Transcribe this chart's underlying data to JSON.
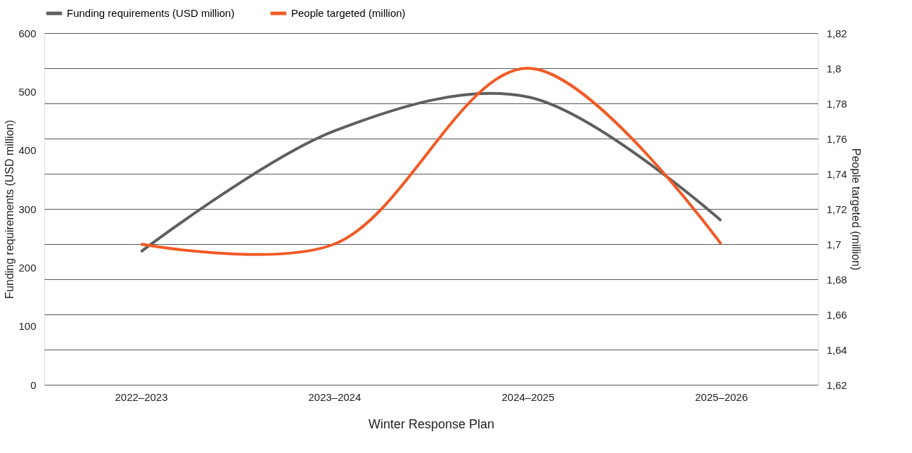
{
  "chart_data": {
    "type": "line",
    "xlabel": "Winter Response Plan",
    "ylabel": "Funding requirements (USD million)",
    "y2label": "People targeted (million)",
    "categories": [
      "2022–2023",
      "2023–2024",
      "2024–2025",
      "2025–2026"
    ],
    "series": [
      {
        "name": "Funding requirements (USD million)",
        "color": "#5f5f5f",
        "values": [
          227,
          433,
          491,
          280
        ]
      },
      {
        "name": "People targeted (million)",
        "color": "#f15a24",
        "values": [
          1.7,
          1.7,
          1.8,
          1.7
        ],
        "axis": "y2"
      }
    ],
    "ylim": [
      0,
      600
    ],
    "yticks": [
      0,
      100,
      200,
      300,
      400,
      500,
      600
    ],
    "y2lim": [
      1.62,
      1.82
    ],
    "y2ticks": [
      {
        "value": 1.62,
        "label": "1,62"
      },
      {
        "value": 1.64,
        "label": "1,64"
      },
      {
        "value": 1.66,
        "label": "1,66"
      },
      {
        "value": 1.68,
        "label": "1,68"
      },
      {
        "value": 1.7,
        "label": "1,7"
      },
      {
        "value": 1.72,
        "label": "1,72"
      },
      {
        "value": 1.74,
        "label": "1,74"
      },
      {
        "value": 1.76,
        "label": "1,76"
      },
      {
        "value": 1.78,
        "label": "1,78"
      },
      {
        "value": 1.8,
        "label": "1,8"
      },
      {
        "value": 1.82,
        "label": "1,82"
      }
    ],
    "grid": "y2",
    "legend": "top",
    "marker": "none",
    "line_style": "solid"
  }
}
